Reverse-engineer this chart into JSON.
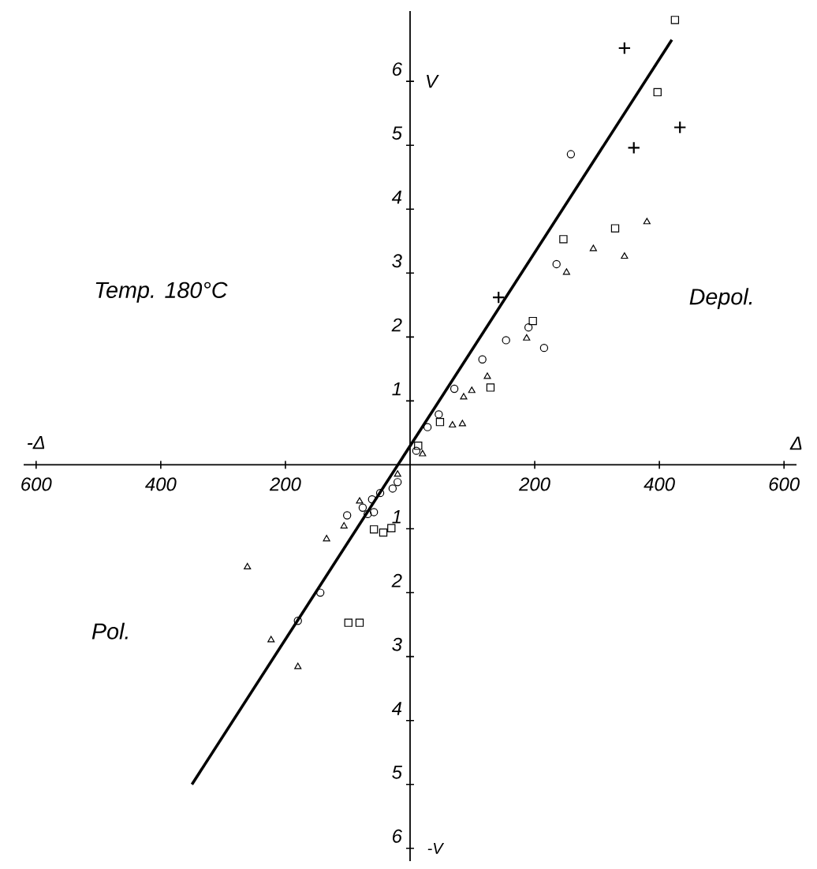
{
  "chart_data": {
    "type": "scatter",
    "ylabel": "V",
    "xlabel": "Δ",
    "annotations": [
      "Temp. 180°C",
      "Depol.",
      "Pol.",
      "-V",
      "-Δ"
    ],
    "xlim": [
      -620,
      620
    ],
    "ylim": [
      -6.2,
      7.1
    ],
    "xticks": [
      {
        "value": -600,
        "label": "600"
      },
      {
        "value": -400,
        "label": "400"
      },
      {
        "value": -200,
        "label": "200"
      },
      200,
      400,
      600
    ],
    "yticks": [
      {
        "value": -6,
        "label": "6"
      },
      {
        "value": -5,
        "label": "5"
      },
      {
        "value": -4,
        "label": "4"
      },
      {
        "value": -3,
        "label": "3"
      },
      {
        "value": -2,
        "label": "2"
      },
      {
        "value": -1,
        "label": "1"
      },
      1,
      2,
      3,
      4,
      5,
      6
    ],
    "grid": false,
    "series": [
      {
        "color": "#000000",
        "marker": "triangle",
        "x": [
          380,
          294,
          344,
          251,
          187,
          124,
          99,
          86,
          84,
          68,
          20,
          -261,
          -134,
          -106,
          -223,
          -180,
          -81,
          -20
        ],
        "values": [
          3.8,
          3.38,
          3.26,
          3.01,
          1.98,
          1.38,
          1.16,
          1.06,
          0.64,
          0.62,
          0.17,
          -1.6,
          -1.16,
          -0.96,
          -2.74,
          -3.16,
          -0.57,
          -0.15
        ]
      },
      {
        "color": "#000000",
        "marker": "square",
        "x": [
          425,
          397,
          329,
          246,
          197,
          129,
          48,
          13,
          -99,
          -81,
          -58,
          -43,
          -30
        ],
        "values": [
          6.96,
          5.83,
          3.7,
          3.53,
          2.25,
          1.21,
          0.67,
          0.3,
          -2.47,
          -2.47,
          -1.01,
          -1.06,
          -0.99
        ]
      },
      {
        "color": "#000000",
        "marker": "circle",
        "x": [
          258,
          235,
          190,
          154,
          215,
          116,
          71,
          46,
          28,
          10,
          -101,
          -144,
          -180,
          -76,
          -61,
          -48,
          -68,
          -58,
          -20,
          -28
        ],
        "values": [
          4.86,
          3.14,
          2.15,
          1.95,
          1.83,
          1.65,
          1.19,
          0.79,
          0.59,
          0.22,
          -0.79,
          -2.0,
          -2.44,
          -0.67,
          -0.54,
          -0.44,
          -0.77,
          -0.74,
          -0.27,
          -0.37
        ]
      },
      {
        "color": "#000000",
        "marker": "cross",
        "x": [
          344,
          433,
          359,
          142
        ],
        "values": [
          6.52,
          5.28,
          4.96,
          2.62
        ]
      },
      {
        "type": "line",
        "color": "#000000",
        "marker": "none",
        "x": [
          -350,
          420
        ],
        "values": [
          -5.0,
          6.65
        ]
      }
    ]
  }
}
